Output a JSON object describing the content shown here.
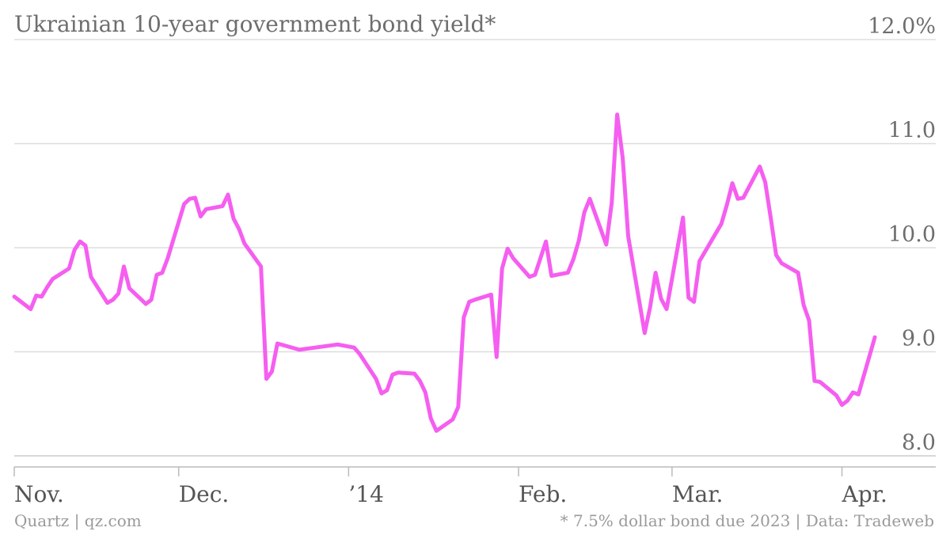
{
  "footer": {
    "left": "Quartz | qz.com",
    "right": "* 7.5% dollar bond due 2023 | Data: Tradeweb"
  },
  "chart_data": {
    "type": "line",
    "title": "Ukrainian 10-year government bond yield*",
    "xlabel": "",
    "ylabel": "",
    "ylim": [
      8.0,
      12.0
    ],
    "y_ticks": [
      {
        "value": 12.0,
        "label": "12.0%"
      },
      {
        "value": 11.0,
        "label": "11.0"
      },
      {
        "value": 10.0,
        "label": "10.0"
      },
      {
        "value": 9.0,
        "label": "9.0"
      },
      {
        "value": 8.0,
        "label": "8.0"
      }
    ],
    "x_ticks": [
      {
        "date": "2013-11-01",
        "label": "Nov."
      },
      {
        "date": "2013-12-01",
        "label": "Dec."
      },
      {
        "date": "2014-01-01",
        "label": "’14"
      },
      {
        "date": "2014-02-01",
        "label": "Feb."
      },
      {
        "date": "2014-03-01",
        "label": "Mar."
      },
      {
        "date": "2014-04-01",
        "label": "Apr."
      }
    ],
    "xlim": [
      "2013-11-01",
      "2014-04-08"
    ],
    "grid": true,
    "line_color": "#f55ef0",
    "grid_color": "#dddddd",
    "series": [
      {
        "points": [
          [
            "2013-11-01",
            9.53
          ],
          [
            "2013-11-04",
            9.41
          ],
          [
            "2013-11-05",
            9.54
          ],
          [
            "2013-11-06",
            9.53
          ],
          [
            "2013-11-07",
            9.62
          ],
          [
            "2013-11-08",
            9.7
          ],
          [
            "2013-11-11",
            9.8
          ],
          [
            "2013-11-12",
            9.98
          ],
          [
            "2013-11-13",
            10.06
          ],
          [
            "2013-11-14",
            10.02
          ],
          [
            "2013-11-15",
            9.72
          ],
          [
            "2013-11-18",
            9.47
          ],
          [
            "2013-11-19",
            9.5
          ],
          [
            "2013-11-20",
            9.56
          ],
          [
            "2013-11-21",
            9.82
          ],
          [
            "2013-11-22",
            9.61
          ],
          [
            "2013-11-25",
            9.46
          ],
          [
            "2013-11-26",
            9.5
          ],
          [
            "2013-11-27",
            9.74
          ],
          [
            "2013-11-28",
            9.76
          ],
          [
            "2013-11-29",
            9.9
          ],
          [
            "2013-12-02",
            10.42
          ],
          [
            "2013-12-03",
            10.47
          ],
          [
            "2013-12-04",
            10.48
          ],
          [
            "2013-12-05",
            10.3
          ],
          [
            "2013-12-06",
            10.37
          ],
          [
            "2013-12-09",
            10.4
          ],
          [
            "2013-12-10",
            10.51
          ],
          [
            "2013-12-11",
            10.28
          ],
          [
            "2013-12-12",
            10.18
          ],
          [
            "2013-12-13",
            10.04
          ],
          [
            "2013-12-16",
            9.82
          ],
          [
            "2013-12-17",
            8.74
          ],
          [
            "2013-12-18",
            8.81
          ],
          [
            "2013-12-19",
            9.08
          ],
          [
            "2013-12-23",
            9.02
          ],
          [
            "2013-12-30",
            9.07
          ],
          [
            "2013-12-31",
            9.06
          ],
          [
            "2014-01-02",
            9.04
          ],
          [
            "2014-01-03",
            8.98
          ],
          [
            "2014-01-06",
            8.74
          ],
          [
            "2014-01-07",
            8.6
          ],
          [
            "2014-01-08",
            8.63
          ],
          [
            "2014-01-09",
            8.78
          ],
          [
            "2014-01-10",
            8.8
          ],
          [
            "2014-01-13",
            8.79
          ],
          [
            "2014-01-14",
            8.72
          ],
          [
            "2014-01-15",
            8.61
          ],
          [
            "2014-01-16",
            8.36
          ],
          [
            "2014-01-17",
            8.24
          ],
          [
            "2014-01-20",
            8.35
          ],
          [
            "2014-01-21",
            8.47
          ],
          [
            "2014-01-22",
            9.33
          ],
          [
            "2014-01-23",
            9.48
          ],
          [
            "2014-01-24",
            9.5
          ],
          [
            "2014-01-27",
            9.55
          ],
          [
            "2014-01-28",
            8.95
          ],
          [
            "2014-01-29",
            9.8
          ],
          [
            "2014-01-30",
            9.99
          ],
          [
            "2014-01-31",
            9.9
          ],
          [
            "2014-02-03",
            9.72
          ],
          [
            "2014-02-04",
            9.74
          ],
          [
            "2014-02-05",
            9.9
          ],
          [
            "2014-02-06",
            10.06
          ],
          [
            "2014-02-07",
            9.73
          ],
          [
            "2014-02-10",
            9.76
          ],
          [
            "2014-02-11",
            9.89
          ],
          [
            "2014-02-12",
            10.07
          ],
          [
            "2014-02-13",
            10.34
          ],
          [
            "2014-02-14",
            10.47
          ],
          [
            "2014-02-17",
            10.03
          ],
          [
            "2014-02-18",
            10.43
          ],
          [
            "2014-02-19",
            11.28
          ],
          [
            "2014-02-20",
            10.86
          ],
          [
            "2014-02-21",
            10.11
          ],
          [
            "2014-02-24",
            9.18
          ],
          [
            "2014-02-25",
            9.43
          ],
          [
            "2014-02-26",
            9.76
          ],
          [
            "2014-02-27",
            9.51
          ],
          [
            "2014-02-28",
            9.41
          ],
          [
            "2014-03-03",
            10.29
          ],
          [
            "2014-03-04",
            9.52
          ],
          [
            "2014-03-05",
            9.48
          ],
          [
            "2014-03-06",
            9.87
          ],
          [
            "2014-03-07",
            9.96
          ],
          [
            "2014-03-10",
            10.23
          ],
          [
            "2014-03-11",
            10.41
          ],
          [
            "2014-03-12",
            10.62
          ],
          [
            "2014-03-13",
            10.47
          ],
          [
            "2014-03-14",
            10.48
          ],
          [
            "2014-03-17",
            10.78
          ],
          [
            "2014-03-18",
            10.63
          ],
          [
            "2014-03-19",
            10.29
          ],
          [
            "2014-03-20",
            9.93
          ],
          [
            "2014-03-21",
            9.85
          ],
          [
            "2014-03-24",
            9.76
          ],
          [
            "2014-03-25",
            9.45
          ],
          [
            "2014-03-26",
            9.3
          ],
          [
            "2014-03-27",
            8.72
          ],
          [
            "2014-03-28",
            8.71
          ],
          [
            "2014-03-31",
            8.58
          ],
          [
            "2014-04-01",
            8.49
          ],
          [
            "2014-04-02",
            8.53
          ],
          [
            "2014-04-03",
            8.61
          ],
          [
            "2014-04-04",
            8.59
          ],
          [
            "2014-04-07",
            9.14
          ]
        ]
      }
    ]
  }
}
